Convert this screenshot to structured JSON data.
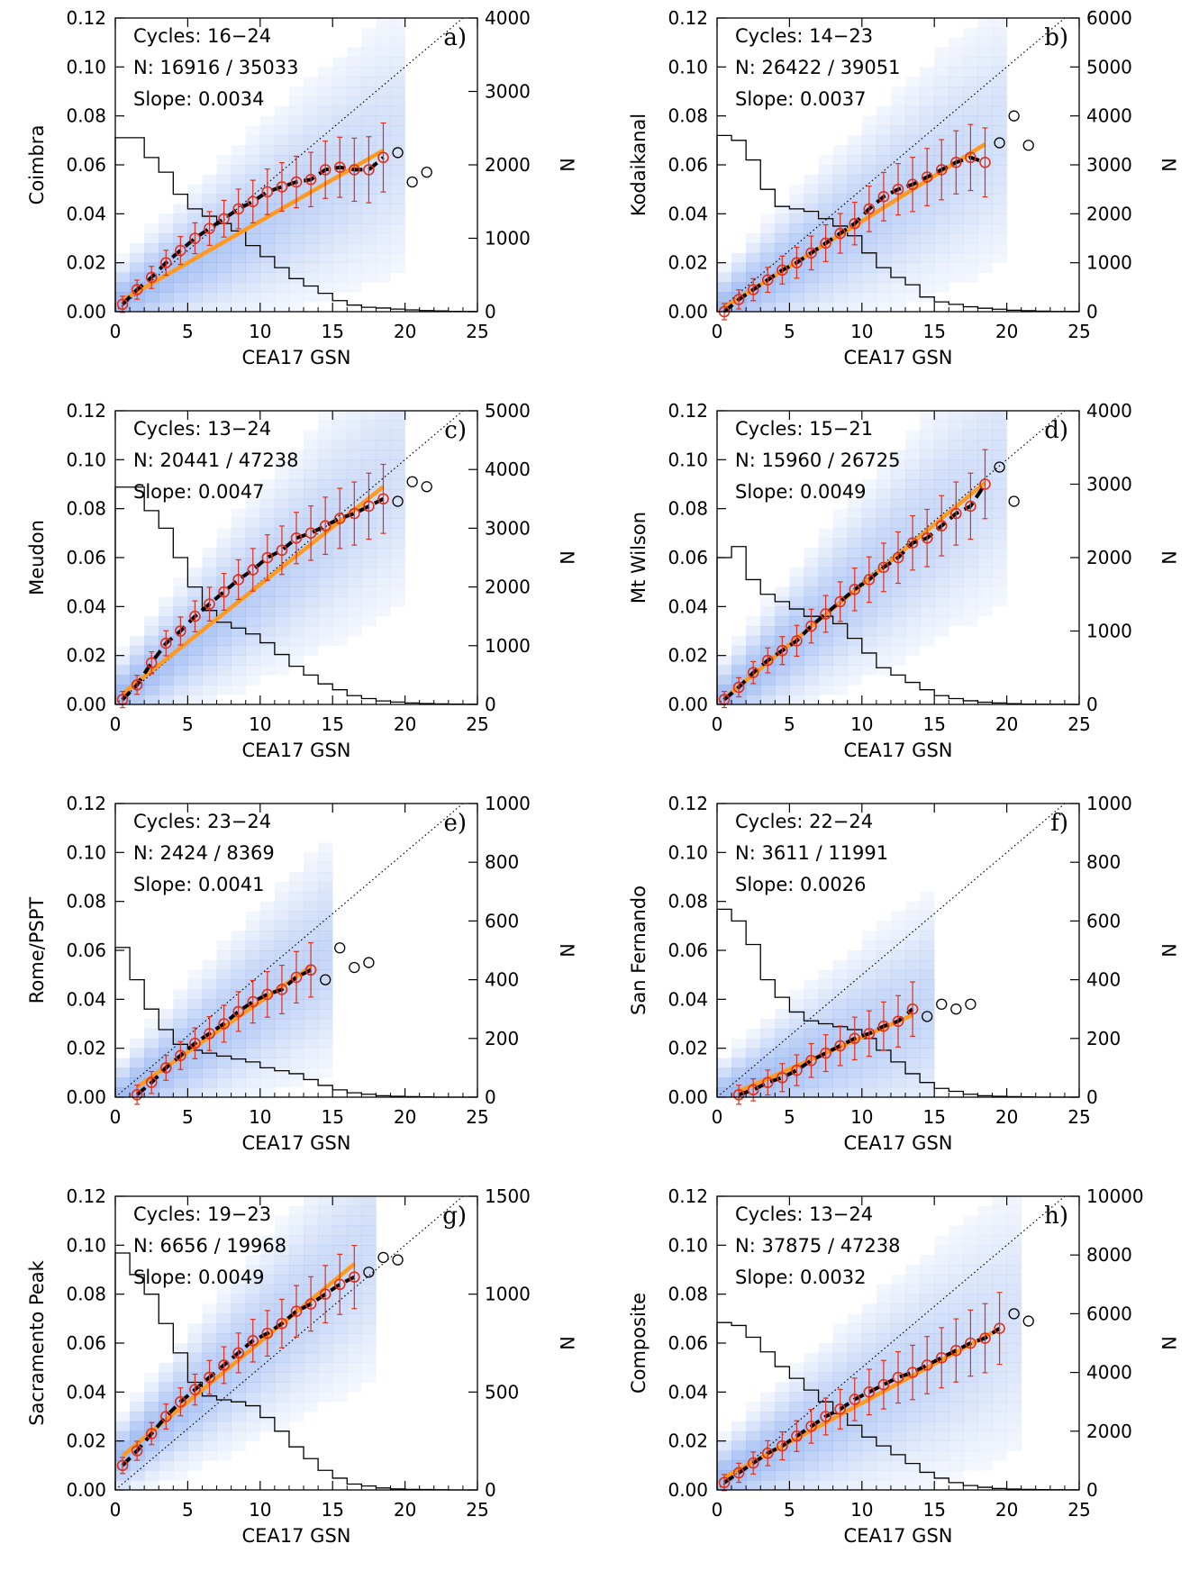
{
  "figure": {
    "xlabel": "CEA17 GSN",
    "ylabel_right": "N",
    "x_ticks": [
      "0",
      "5",
      "10",
      "15",
      "20",
      "25"
    ],
    "y_ticks": [
      "0.00",
      "0.02",
      "0.04",
      "0.06",
      "0.08",
      "0.10",
      "0.12"
    ],
    "colors": {
      "fit_line": "#ff9a1f",
      "binned_mean": "#e0301e",
      "density_max": "#1f5fe0",
      "dashed_curve": "#000000",
      "identity_line": "#000000",
      "histogram": "#000000"
    }
  },
  "chart_data": [
    {
      "type": "scatter",
      "panel": "a)",
      "ylabel": "Coimbra",
      "cycles": "Cycles: 16−24",
      "n_text": "N: 16916 / 35033",
      "slope_text": "Slope: 0.0034",
      "slope": 0.0034,
      "intercept": 0.003,
      "fit_xmax": 18.5,
      "xlim": [
        0,
        25
      ],
      "ylim": [
        0,
        0.12
      ],
      "y2lim": [
        0,
        4000
      ],
      "y2_ticks": [
        "0",
        "1000",
        "2000",
        "3000",
        "4000"
      ],
      "mean_points_x": [
        0.5,
        1.5,
        2.5,
        3.5,
        4.5,
        5.5,
        6.5,
        7.5,
        8.5,
        9.5,
        10.5,
        11.5,
        12.5,
        13.5,
        14.5,
        15.5,
        16.5,
        17.5,
        18.5
      ],
      "mean_points_y": [
        0.003,
        0.009,
        0.014,
        0.02,
        0.025,
        0.03,
        0.034,
        0.038,
        0.042,
        0.045,
        0.049,
        0.051,
        0.053,
        0.054,
        0.058,
        0.059,
        0.058,
        0.058,
        0.063
      ],
      "outlier_points_x": [
        19.5,
        20.5,
        21.5
      ],
      "outlier_points_y": [
        0.065,
        0.053,
        0.057
      ],
      "histogram_counts": [
        2370,
        2370,
        2100,
        1900,
        1600,
        1400,
        1300,
        1200,
        1100,
        900,
        750,
        600,
        450,
        350,
        250,
        150,
        90,
        60,
        50,
        35,
        25,
        15,
        10,
        5,
        3
      ]
    },
    {
      "type": "scatter",
      "panel": "b)",
      "ylabel": "Kodaikanal",
      "cycles": "Cycles: 14−23",
      "n_text": "N: 26422 / 39051",
      "slope_text": "Slope: 0.0037",
      "slope": 0.0037,
      "intercept": 0.0,
      "fit_xmax": 18.5,
      "xlim": [
        0,
        25
      ],
      "ylim": [
        0,
        0.12
      ],
      "y2lim": [
        0,
        6000
      ],
      "y2_ticks": [
        "0",
        "1000",
        "2000",
        "3000",
        "4000",
        "5000",
        "6000"
      ],
      "mean_points_x": [
        0.5,
        1.5,
        2.5,
        3.5,
        4.5,
        5.5,
        6.5,
        7.5,
        8.5,
        9.5,
        10.5,
        11.5,
        12.5,
        13.5,
        14.5,
        15.5,
        16.5,
        17.5,
        18.5
      ],
      "mean_points_y": [
        0.0,
        0.005,
        0.009,
        0.013,
        0.017,
        0.02,
        0.024,
        0.028,
        0.032,
        0.036,
        0.042,
        0.047,
        0.05,
        0.052,
        0.055,
        0.058,
        0.061,
        0.063,
        0.061
      ],
      "outlier_points_x": [
        19.5,
        20.5,
        21.5
      ],
      "outlier_points_y": [
        0.069,
        0.08,
        0.068
      ],
      "histogram_counts": [
        3600,
        3500,
        3100,
        2500,
        2150,
        2100,
        2050,
        1900,
        1750,
        1550,
        1200,
        900,
        700,
        550,
        300,
        200,
        150,
        100,
        70,
        50,
        30,
        20,
        10,
        5,
        3
      ]
    },
    {
      "type": "scatter",
      "panel": "c)",
      "ylabel": "Meudon",
      "cycles": "Cycles: 13−24",
      "n_text": "N: 20441 / 47238",
      "slope_text": "Slope: 0.0047",
      "slope": 0.0047,
      "intercept": 0.002,
      "fit_xmax": 18.5,
      "xlim": [
        0,
        25
      ],
      "ylim": [
        0,
        0.12
      ],
      "y2lim": [
        0,
        5000
      ],
      "y2_ticks": [
        "0",
        "1000",
        "2000",
        "3000",
        "4000",
        "5000"
      ],
      "mean_points_x": [
        0.5,
        1.5,
        2.5,
        3.5,
        4.5,
        5.5,
        6.5,
        7.5,
        8.5,
        9.5,
        10.5,
        11.5,
        12.5,
        13.5,
        14.5,
        15.5,
        16.5,
        17.5,
        18.5
      ],
      "mean_points_y": [
        0.002,
        0.008,
        0.017,
        0.025,
        0.03,
        0.036,
        0.041,
        0.046,
        0.051,
        0.055,
        0.06,
        0.063,
        0.068,
        0.07,
        0.073,
        0.076,
        0.078,
        0.081,
        0.084
      ],
      "outlier_points_x": [
        19.5,
        20.5,
        21.5
      ],
      "outlier_points_y": [
        0.083,
        0.091,
        0.089
      ],
      "histogram_counts": [
        3700,
        3700,
        3300,
        3000,
        2500,
        2000,
        1600,
        1400,
        1300,
        1200,
        1050,
        850,
        650,
        500,
        350,
        250,
        150,
        100,
        60,
        40,
        25,
        15,
        10,
        5,
        3
      ]
    },
    {
      "type": "scatter",
      "panel": "d)",
      "ylabel": "Mt Wilson",
      "cycles": "Cycles: 15−21",
      "n_text": "N: 15960 / 26725",
      "slope_text": "Slope: 0.0049",
      "slope": 0.0049,
      "intercept": 0.0,
      "fit_xmax": 18.5,
      "xlim": [
        0,
        25
      ],
      "ylim": [
        0,
        0.12
      ],
      "y2lim": [
        0,
        4000
      ],
      "y2_ticks": [
        "0",
        "1000",
        "2000",
        "3000",
        "4000"
      ],
      "mean_points_x": [
        0.5,
        1.5,
        2.5,
        3.5,
        4.5,
        5.5,
        6.5,
        7.5,
        8.5,
        9.5,
        10.5,
        11.5,
        12.5,
        13.5,
        14.5,
        15.5,
        16.5,
        17.5,
        18.5
      ],
      "mean_points_y": [
        0.002,
        0.007,
        0.013,
        0.018,
        0.022,
        0.026,
        0.032,
        0.037,
        0.042,
        0.047,
        0.051,
        0.056,
        0.06,
        0.066,
        0.068,
        0.073,
        0.078,
        0.081,
        0.09
      ],
      "outlier_points_x": [
        19.5,
        20.5
      ],
      "outlier_points_y": [
        0.097,
        0.083
      ],
      "histogram_counts": [
        2000,
        2150,
        1700,
        1500,
        1400,
        1300,
        1200,
        1200,
        1100,
        900,
        700,
        500,
        400,
        300,
        200,
        120,
        80,
        50,
        30,
        20,
        10,
        5,
        3,
        2,
        1
      ]
    },
    {
      "type": "scatter",
      "panel": "e)",
      "ylabel": "Rome/PSPT",
      "cycles": "Cycles: 23−24",
      "n_text": "N: 2424 / 8369",
      "slope_text": "Slope: 0.0041",
      "slope": 0.0041,
      "intercept": -0.002,
      "fit_xmax": 13.5,
      "xlim": [
        0,
        25
      ],
      "ylim": [
        0,
        0.12
      ],
      "y2lim": [
        0,
        1000
      ],
      "y2_ticks": [
        "0",
        "200",
        "400",
        "600",
        "800",
        "1000"
      ],
      "mean_points_x": [
        1.5,
        2.5,
        3.5,
        4.5,
        5.5,
        6.5,
        7.5,
        8.5,
        9.5,
        10.5,
        11.5,
        12.5,
        13.5
      ],
      "mean_points_y": [
        0.001,
        0.006,
        0.012,
        0.017,
        0.022,
        0.026,
        0.03,
        0.035,
        0.039,
        0.042,
        0.044,
        0.049,
        0.052
      ],
      "outlier_points_x": [
        14.5,
        15.5,
        16.5,
        17.5
      ],
      "outlier_points_y": [
        0.048,
        0.061,
        0.053,
        0.055
      ],
      "histogram_counts": [
        510,
        400,
        300,
        230,
        180,
        160,
        150,
        140,
        130,
        120,
        100,
        90,
        80,
        60,
        40,
        25,
        15,
        10,
        5,
        3,
        2,
        1,
        0,
        0,
        0
      ]
    },
    {
      "type": "scatter",
      "panel": "f)",
      "ylabel": "San Fernando",
      "cycles": "Cycles: 22−24",
      "n_text": "N: 3611 / 11991",
      "slope_text": "Slope: 0.0026",
      "slope": 0.0026,
      "intercept": -0.0015,
      "fit_xmax": 13.5,
      "xlim": [
        0,
        25
      ],
      "ylim": [
        0,
        0.12
      ],
      "y2lim": [
        0,
        1000
      ],
      "y2_ticks": [
        "0",
        "200",
        "400",
        "600",
        "800",
        "1000"
      ],
      "mean_points_x": [
        1.5,
        2.5,
        3.5,
        4.5,
        5.5,
        6.5,
        7.5,
        8.5,
        9.5,
        10.5,
        11.5,
        12.5,
        13.5
      ],
      "mean_points_y": [
        0.001,
        0.003,
        0.006,
        0.008,
        0.011,
        0.015,
        0.018,
        0.021,
        0.024,
        0.026,
        0.029,
        0.031,
        0.036
      ],
      "outlier_points_x": [
        14.5,
        15.5,
        16.5,
        17.5
      ],
      "outlier_points_y": [
        0.033,
        0.038,
        0.036,
        0.038
      ],
      "histogram_counts": [
        640,
        600,
        520,
        400,
        340,
        290,
        260,
        250,
        240,
        230,
        200,
        160,
        120,
        80,
        50,
        30,
        20,
        10,
        5,
        3,
        2,
        1,
        0,
        0,
        0
      ]
    },
    {
      "type": "scatter",
      "panel": "g)",
      "ylabel": "Sacramento Peak",
      "cycles": "Cycles: 19−23",
      "n_text": "N: 6656 / 19968",
      "slope_text": "Slope: 0.0049",
      "slope": 0.0049,
      "intercept": 0.0115,
      "fit_xmax": 16.5,
      "xlim": [
        0,
        25
      ],
      "ylim": [
        0,
        0.12
      ],
      "y2lim": [
        0,
        1500
      ],
      "y2_ticks": [
        "0",
        "500",
        "1000",
        "1500"
      ],
      "mean_points_x": [
        0.5,
        1.5,
        2.5,
        3.5,
        4.5,
        5.5,
        6.5,
        7.5,
        8.5,
        9.5,
        10.5,
        11.5,
        12.5,
        13.5,
        14.5,
        15.5,
        16.5
      ],
      "mean_points_y": [
        0.01,
        0.016,
        0.023,
        0.03,
        0.036,
        0.041,
        0.046,
        0.051,
        0.056,
        0.061,
        0.064,
        0.068,
        0.073,
        0.076,
        0.08,
        0.084,
        0.087
      ],
      "outlier_points_x": [
        17.5,
        18.5,
        19.5
      ],
      "outlier_points_y": [
        0.089,
        0.095,
        0.094
      ],
      "histogram_counts": [
        1210,
        1100,
        1000,
        850,
        700,
        550,
        480,
        460,
        450,
        430,
        370,
        300,
        220,
        160,
        100,
        60,
        30,
        20,
        10,
        5,
        3,
        2,
        1,
        0,
        0
      ]
    },
    {
      "type": "scatter",
      "panel": "h)",
      "ylabel": "Composite",
      "cycles": "Cycles: 13−24",
      "n_text": "N: 37875 / 47238",
      "slope_text": "Slope: 0.0032",
      "slope": 0.0032,
      "intercept": 0.0035,
      "fit_xmax": 19.5,
      "xlim": [
        0,
        25
      ],
      "ylim": [
        0,
        0.12
      ],
      "y2lim": [
        0,
        10000
      ],
      "y2_ticks": [
        "0",
        "2000",
        "4000",
        "6000",
        "8000",
        "10000"
      ],
      "mean_points_x": [
        0.5,
        1.5,
        2.5,
        3.5,
        4.5,
        5.5,
        6.5,
        7.5,
        8.5,
        9.5,
        10.5,
        11.5,
        12.5,
        13.5,
        14.5,
        15.5,
        16.5,
        17.5,
        18.5,
        19.5
      ],
      "mean_points_y": [
        0.003,
        0.007,
        0.011,
        0.015,
        0.018,
        0.022,
        0.026,
        0.03,
        0.033,
        0.037,
        0.04,
        0.043,
        0.046,
        0.048,
        0.051,
        0.054,
        0.057,
        0.06,
        0.062,
        0.066
      ],
      "outlier_points_x": [
        20.5,
        21.5
      ],
      "outlier_points_y": [
        0.072,
        0.069
      ],
      "histogram_counts": [
        5700,
        5600,
        5200,
        4700,
        4200,
        3800,
        3400,
        3000,
        2600,
        2200,
        1800,
        1500,
        1200,
        900,
        600,
        400,
        250,
        150,
        90,
        50,
        30,
        20,
        10,
        5,
        3
      ]
    }
  ]
}
